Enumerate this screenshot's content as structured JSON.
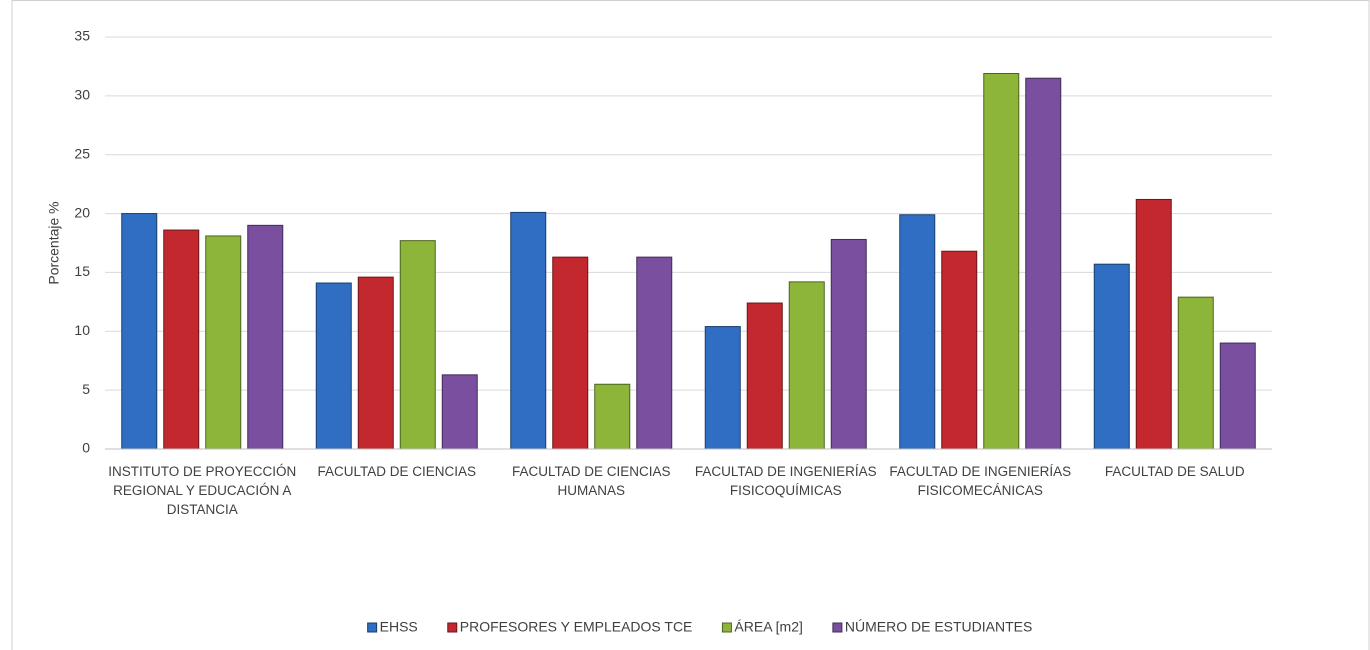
{
  "chart_data": {
    "type": "bar",
    "y_label": "Porcentaje %",
    "categories": [
      "INSTITUTO DE PROYECCIÓN REGIONAL Y EDUCACIÓN A DISTANCIA",
      "FACULTAD DE CIENCIAS",
      "FACULTAD DE CIENCIAS HUMANAS",
      "FACULTAD DE INGENIERÍAS FISICOQUÍMICAS",
      "FACULTAD DE INGENIERÍAS FISICOMECÁNICAS",
      "FACULTAD DE SALUD"
    ],
    "series": [
      {
        "name": "EHSS",
        "color": "#2f6ec3",
        "values": [
          20,
          14.1,
          20.1,
          10.4,
          19.9,
          15.7
        ]
      },
      {
        "name": "PROFESORES Y EMPLEADOS TCE",
        "color": "#c3282e",
        "values": [
          18.6,
          14.6,
          16.3,
          12.4,
          16.8,
          21.2
        ]
      },
      {
        "name": "ÁREA [m2]",
        "color": "#8cb53a",
        "values": [
          18.1,
          17.7,
          5.5,
          14.2,
          31.9,
          12.9
        ]
      },
      {
        "name": "NÚMERO DE ESTUDIANTES",
        "color": "#7a4f9f",
        "values": [
          19.0,
          6.3,
          16.3,
          17.8,
          31.5,
          9.0
        ]
      }
    ],
    "ylim": [
      0,
      35
    ],
    "yticks": [
      0,
      5,
      10,
      15,
      20,
      25,
      30,
      35
    ],
    "grid": true,
    "legend": "bottom"
  }
}
